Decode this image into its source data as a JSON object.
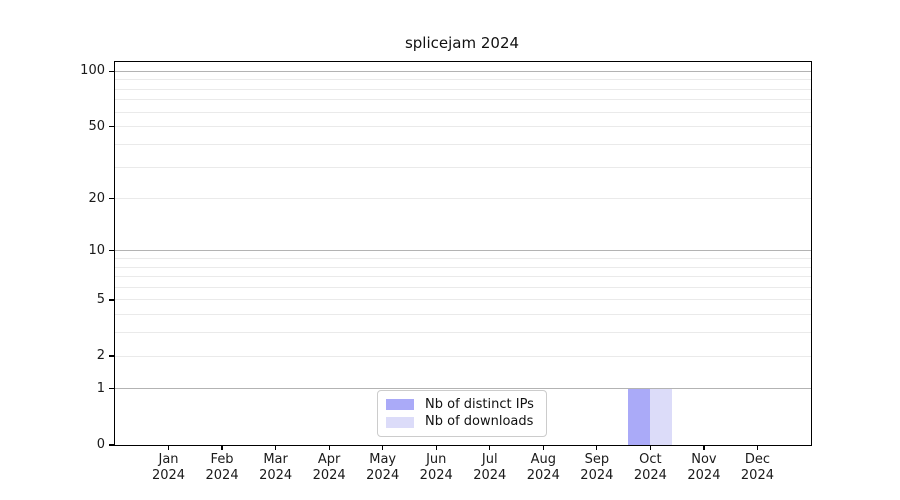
{
  "chart_data": {
    "type": "bar",
    "title": "splicejam 2024",
    "categories": [
      "Jan 2024",
      "Feb 2024",
      "Mar 2024",
      "Apr 2024",
      "May 2024",
      "Jun 2024",
      "Jul 2024",
      "Aug 2024",
      "Sep 2024",
      "Oct 2024",
      "Nov 2024",
      "Dec 2024"
    ],
    "series": [
      {
        "name": "Nb of distinct IPs",
        "color": "#aaaaf8",
        "values": [
          0,
          0,
          0,
          0,
          0,
          0,
          0,
          0,
          0,
          1,
          0,
          0
        ]
      },
      {
        "name": "Nb of downloads",
        "color": "#dcdcf9",
        "values": [
          0,
          0,
          0,
          0,
          0,
          0,
          0,
          0,
          0,
          1,
          0,
          0
        ]
      }
    ],
    "xlabel": "",
    "ylabel": "",
    "y_scale": "log10(1+x)",
    "y_ticks": [
      0,
      1,
      2,
      5,
      10,
      20,
      50,
      100
    ],
    "major_gridlines": [
      1,
      10,
      100
    ],
    "minor_gridlines": [
      2,
      3,
      4,
      6,
      7,
      8,
      9,
      20,
      30,
      40,
      60,
      70,
      80,
      90
    ],
    "ylim": [
      0,
      112
    ],
    "grid": "on",
    "legend_position": "inside-bottom-center",
    "colors": {
      "bar_distinct_ips": "#aaaaf8",
      "bar_downloads": "#dcdcf9",
      "major_grid": "#b3b3b3",
      "minor_grid": "#eaeaea",
      "axis": "#000000",
      "text": "#1a1a1a",
      "legend_border": "#cccccc",
      "background": "#ffffff"
    }
  }
}
